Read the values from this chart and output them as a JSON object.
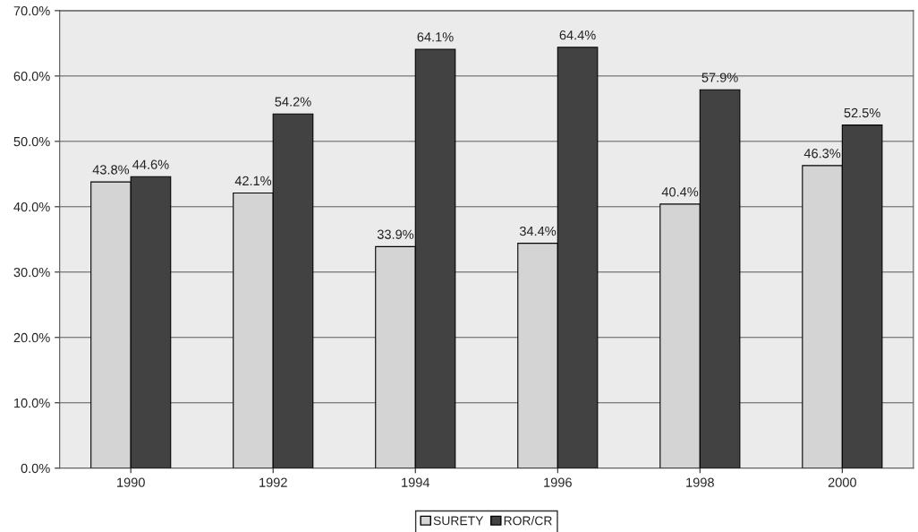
{
  "chart_data": {
    "type": "bar",
    "categories": [
      "1990",
      "1992",
      "1994",
      "1996",
      "1998",
      "2000"
    ],
    "series": [
      {
        "name": "SURETY",
        "color": "#d4d4d4",
        "values": [
          43.8,
          42.1,
          33.9,
          34.4,
          40.4,
          46.3
        ],
        "value_labels": [
          "43.8%",
          "42.1%",
          "33.9%",
          "34.4%",
          "40.4%",
          "46.3%"
        ]
      },
      {
        "name": "ROR/CR",
        "color": "#424242",
        "values": [
          44.6,
          54.2,
          64.1,
          64.4,
          57.9,
          52.5
        ],
        "value_labels": [
          "44.6%",
          "54.2%",
          "64.1%",
          "64.4%",
          "57.9%",
          "52.5%"
        ]
      }
    ],
    "ylim": [
      0,
      70
    ],
    "yticks": [
      {
        "value": 0,
        "label": "0.0%"
      },
      {
        "value": 10,
        "label": "10.0%"
      },
      {
        "value": 20,
        "label": "20.0%"
      },
      {
        "value": 30,
        "label": "30.0%"
      },
      {
        "value": 40,
        "label": "40.0%"
      },
      {
        "value": 50,
        "label": "50.0%"
      },
      {
        "value": 60,
        "label": "60.0%"
      },
      {
        "value": 70,
        "label": "70.0%"
      }
    ],
    "grid": "y",
    "legend": "bottom"
  }
}
